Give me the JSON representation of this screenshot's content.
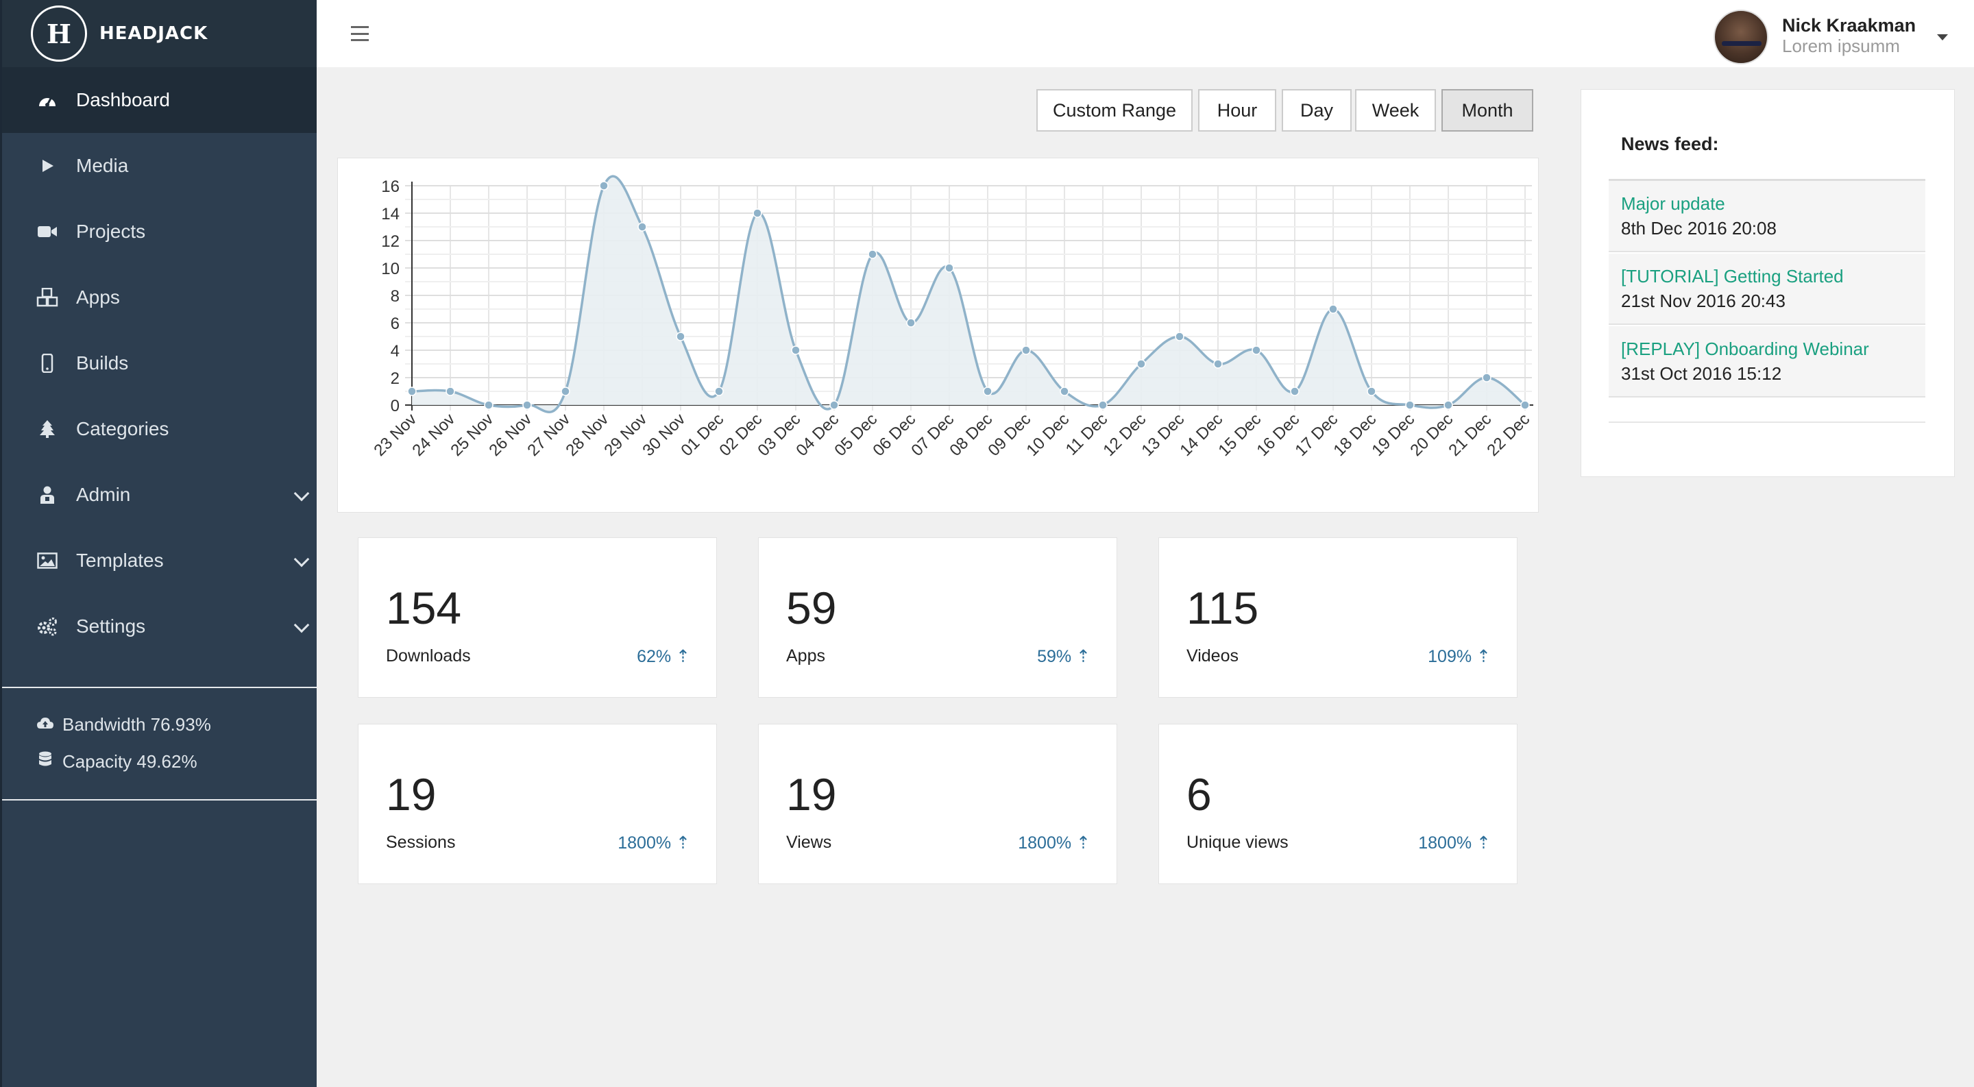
{
  "brand": {
    "logo_letter": "H",
    "name": "HEADJACK"
  },
  "sidebar": {
    "items": [
      {
        "label": "Dashboard",
        "icon": "dashboard-icon",
        "active": true
      },
      {
        "label": "Media",
        "icon": "play-icon"
      },
      {
        "label": "Projects",
        "icon": "video-camera-icon"
      },
      {
        "label": "Apps",
        "icon": "cubes-icon"
      },
      {
        "label": "Builds",
        "icon": "mobile-icon"
      },
      {
        "label": "Categories",
        "icon": "tree-icon"
      },
      {
        "label": "Admin",
        "icon": "admin-icon",
        "has_submenu": true
      },
      {
        "label": "Templates",
        "icon": "image-icon",
        "has_submenu": true
      },
      {
        "label": "Settings",
        "icon": "gears-icon",
        "has_submenu": true
      }
    ],
    "usage": {
      "bandwidth": "Bandwidth 76.93%",
      "capacity": "Capacity 49.62%"
    }
  },
  "user": {
    "name": "Nick Kraakman",
    "subtitle": "Lorem ipsumm"
  },
  "range_buttons": [
    "Custom Range",
    "Hour",
    "Day",
    "Week",
    "Month"
  ],
  "range_selected": "Month",
  "chart_data": {
    "type": "area",
    "title": "",
    "xlabel": "",
    "ylabel": "",
    "ylim": [
      0,
      16
    ],
    "yticks": [
      0,
      2,
      4,
      6,
      8,
      10,
      12,
      14,
      16
    ],
    "grid": true,
    "legend": "none",
    "categories": [
      "23 Nov",
      "24 Nov",
      "25 Nov",
      "26 Nov",
      "27 Nov",
      "28 Nov",
      "29 Nov",
      "30 Nov",
      "01 Dec",
      "02 Dec",
      "03 Dec",
      "04 Dec",
      "05 Dec",
      "06 Dec",
      "07 Dec",
      "08 Dec",
      "09 Dec",
      "10 Dec",
      "11 Dec",
      "12 Dec",
      "13 Dec",
      "14 Dec",
      "15 Dec",
      "16 Dec",
      "17 Dec",
      "18 Dec",
      "19 Dec",
      "20 Dec",
      "21 Dec",
      "22 Dec"
    ],
    "series": [
      {
        "values": [
          1,
          1,
          0,
          0,
          1,
          16,
          13,
          5,
          1,
          14,
          4,
          0,
          11,
          6,
          10,
          1,
          4,
          1,
          0,
          3,
          5,
          3,
          4,
          1,
          7,
          1,
          0,
          0,
          2,
          0
        ]
      }
    ],
    "colors": {
      "line": "#8fb2c9",
      "fill": "#e8eef2",
      "point": "#8fb2c9"
    }
  },
  "stats": [
    {
      "value": "154",
      "label": "Downloads",
      "change": "62% ⇡"
    },
    {
      "value": "59",
      "label": "Apps",
      "change": "59% ⇡"
    },
    {
      "value": "115",
      "label": "Videos",
      "change": "109% ⇡"
    },
    {
      "value": "19",
      "label": "Sessions",
      "change": "1800% ⇡"
    },
    {
      "value": "19",
      "label": "Views",
      "change": "1800% ⇡"
    },
    {
      "value": "6",
      "label": "Unique views",
      "change": "1800% ⇡"
    }
  ],
  "news": {
    "title": "News feed:",
    "items": [
      {
        "title": "Major update",
        "date": "8th Dec 2016 20:08"
      },
      {
        "title": "[TUTORIAL] Getting Started",
        "date": "21st Nov 2016 20:43"
      },
      {
        "title": "[REPLAY] Onboarding Webinar",
        "date": "31st Oct 2016 15:12"
      }
    ]
  },
  "colors": {
    "sidebar": "#2d3e50",
    "link": "#1aa080",
    "stat_change": "#2b6d98"
  }
}
